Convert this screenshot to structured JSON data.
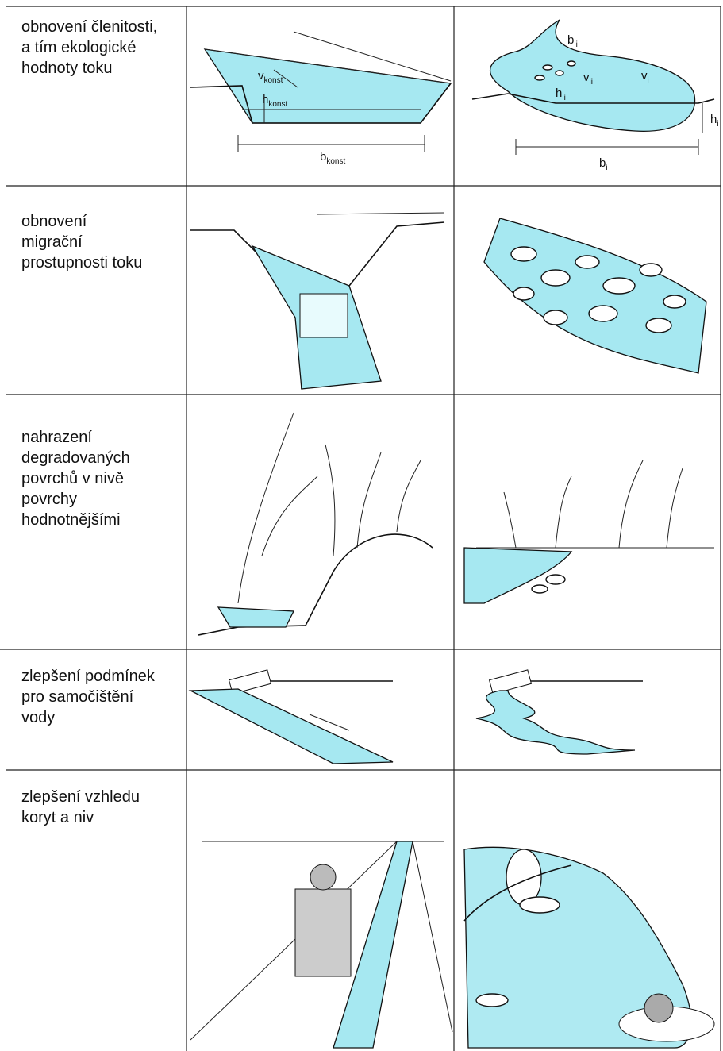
{
  "table": {
    "rows": [
      {
        "label": [
          "obnovení členitosti,",
          "a tím ekologické",
          "hodnoty toku"
        ],
        "left_annotations": {
          "v": {
            "main": "v",
            "sub": "konst"
          },
          "h": {
            "main": "h",
            "sub": "konst"
          },
          "b": {
            "main": "b",
            "sub": "konst"
          }
        },
        "right_annotations": {
          "b_ii": {
            "main": "b",
            "sub": "ii"
          },
          "v_ii": {
            "main": "v",
            "sub": "ii"
          },
          "v_i": {
            "main": "v",
            "sub": "i"
          },
          "h_ii": {
            "main": "h",
            "sub": "ii"
          },
          "h_i": {
            "main": "h",
            "sub": "i"
          },
          "b_i": {
            "main": "b",
            "sub": "i"
          }
        }
      },
      {
        "label": [
          "obnovení",
          "migrační",
          "prostupnosti toku"
        ]
      },
      {
        "label": [
          "nahrazení",
          "degradovaných",
          "povrchů v nivě",
          "povrchy",
          "hodnotnějšími"
        ]
      },
      {
        "label": [
          "zlepšení podmínek",
          "pro samočištění",
          "vody"
        ]
      },
      {
        "label": [
          "zlepšení vzhledu",
          "koryt a niv"
        ]
      }
    ]
  }
}
